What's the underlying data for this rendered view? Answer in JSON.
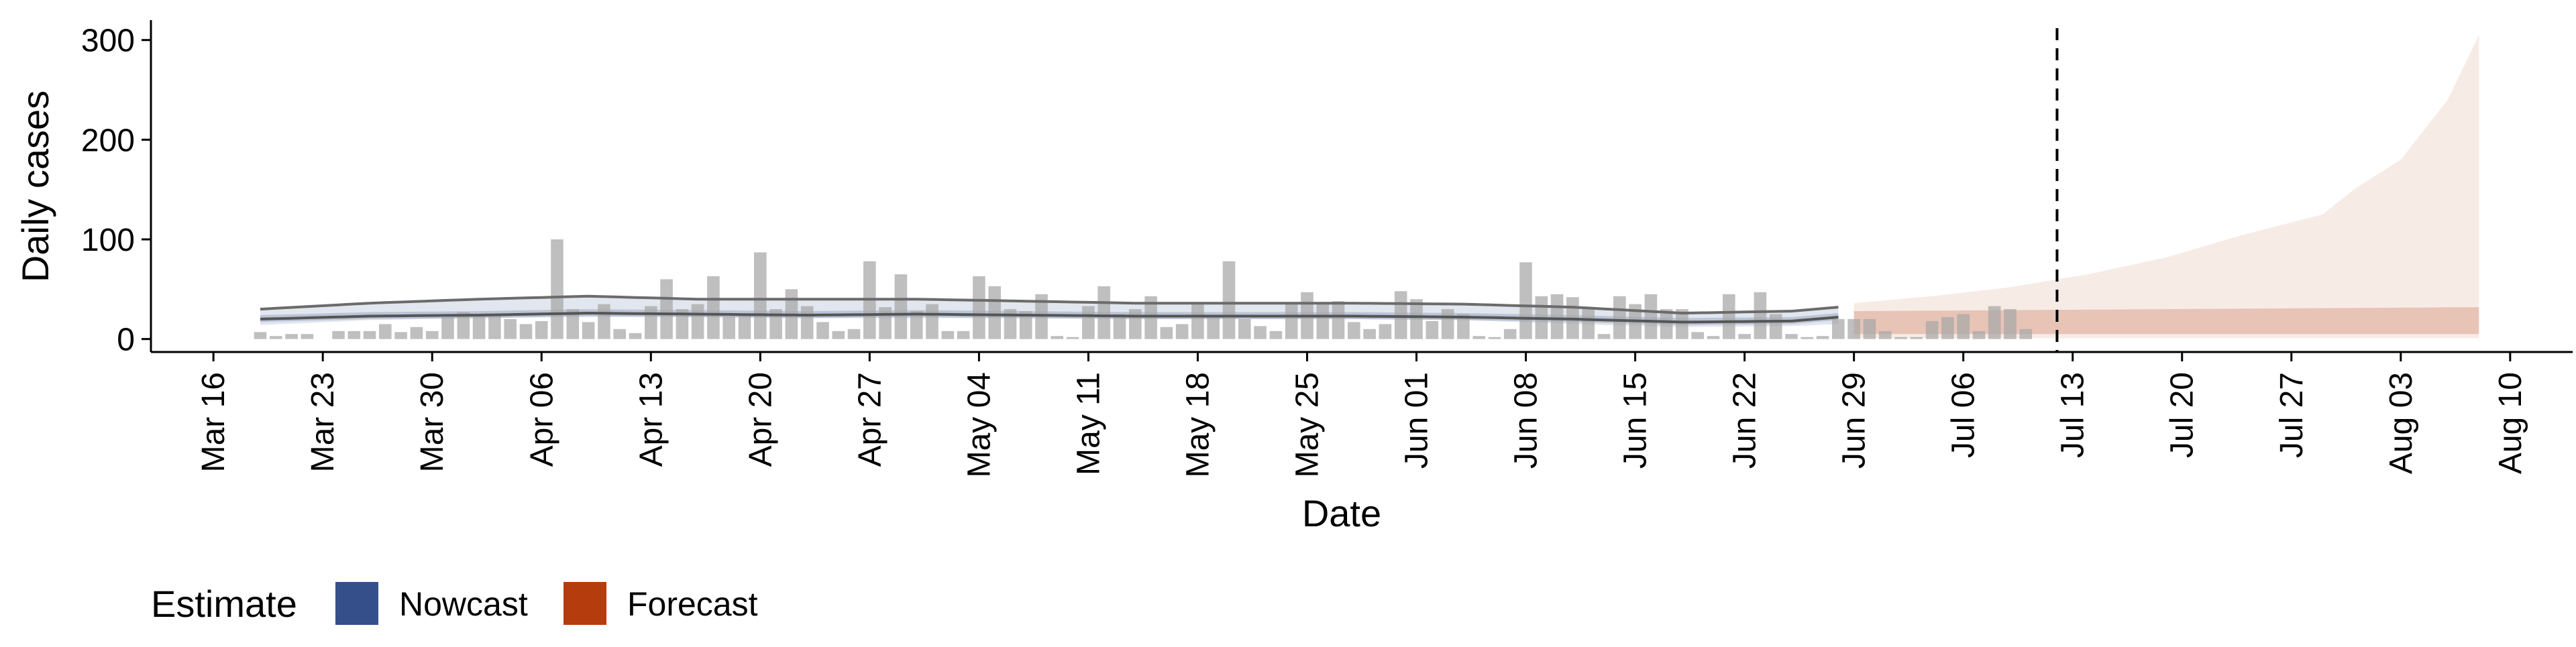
{
  "chart_data": {
    "type": "bar",
    "xlabel": "Date",
    "ylabel": "Daily cases",
    "ylim": [
      0,
      320
    ],
    "y_ticks": [
      "0",
      "100",
      "200",
      "300"
    ],
    "x_ticks": [
      "Mar 16",
      "Mar 23",
      "Mar 30",
      "Apr 06",
      "Apr 13",
      "Apr 20",
      "Apr 27",
      "May 04",
      "May 11",
      "May 18",
      "May 25",
      "Jun 01",
      "Jun 08",
      "Jun 15",
      "Jun 22",
      "Jun 29",
      "Jul 06",
      "Jul 13",
      "Jul 20",
      "Jul 27",
      "Aug 03",
      "Aug 10"
    ],
    "x_tick_dates": [
      "2020-03-16",
      "2020-03-23",
      "2020-03-30",
      "2020-04-06",
      "2020-04-13",
      "2020-04-20",
      "2020-04-27",
      "2020-05-04",
      "2020-05-11",
      "2020-05-18",
      "2020-05-25",
      "2020-06-01",
      "2020-06-08",
      "2020-06-15",
      "2020-06-22",
      "2020-06-29",
      "2020-07-06",
      "2020-07-13",
      "2020-07-20",
      "2020-07-27",
      "2020-08-03",
      "2020-08-10"
    ],
    "xlim": [
      "2020-03-12",
      "2020-08-14"
    ],
    "grid": false,
    "legend": {
      "title": "Estimate",
      "position": "bottom-left",
      "entries": [
        {
          "label": "Nowcast",
          "color": "#354f8a"
        },
        {
          "label": "Forecast",
          "color": "#b53c0c"
        }
      ]
    },
    "reference_line": {
      "x": "2020-07-12",
      "style": "dashed"
    },
    "observed_cases": {
      "start": "2020-03-19",
      "color": "#a6a6a6",
      "values": [
        7,
        3,
        5,
        5,
        0,
        8,
        8,
        8,
        15,
        7,
        12,
        8,
        22,
        27,
        25,
        23,
        20,
        15,
        18,
        100,
        30,
        17,
        35,
        10,
        6,
        33,
        60,
        30,
        35,
        63,
        23,
        25,
        87,
        30,
        50,
        33,
        17,
        8,
        10,
        78,
        32,
        65,
        28,
        35,
        8,
        8,
        63,
        53,
        30,
        28,
        45,
        3,
        2,
        33,
        53,
        25,
        30,
        43,
        12,
        15,
        35,
        23,
        78,
        20,
        13,
        8,
        35,
        47,
        35,
        38,
        17,
        10,
        15,
        48,
        40,
        18,
        30,
        25,
        3,
        2,
        10,
        77,
        43,
        45,
        42,
        30,
        5,
        43,
        35,
        45,
        30,
        30,
        7,
        3,
        45,
        5,
        47,
        25,
        5,
        2,
        3,
        20,
        20,
        20,
        8,
        2,
        2,
        18,
        22,
        25,
        8,
        33,
        30,
        10
      ]
    },
    "nowcast": {
      "start": "2020-03-19",
      "end": "2020-06-28",
      "color": "#354f8a",
      "median": [
        [
          0,
          20
        ],
        [
          7,
          23
        ],
        [
          14,
          24
        ],
        [
          21,
          26
        ],
        [
          28,
          25
        ],
        [
          35,
          24
        ],
        [
          42,
          25
        ],
        [
          49,
          24
        ],
        [
          56,
          23
        ],
        [
          63,
          23
        ],
        [
          70,
          23
        ],
        [
          77,
          22
        ],
        [
          84,
          20
        ],
        [
          91,
          17
        ],
        [
          98,
          18
        ],
        [
          101,
          22
        ]
      ],
      "lower": [
        [
          0,
          14
        ],
        [
          7,
          19
        ],
        [
          14,
          21
        ],
        [
          21,
          22
        ],
        [
          28,
          22
        ],
        [
          35,
          21
        ],
        [
          42,
          21
        ],
        [
          49,
          21
        ],
        [
          56,
          20
        ],
        [
          63,
          20
        ],
        [
          70,
          20
        ],
        [
          77,
          19
        ],
        [
          84,
          15
        ],
        [
          91,
          12
        ],
        [
          98,
          13
        ],
        [
          101,
          15
        ]
      ],
      "upper": [
        [
          0,
          30
        ],
        [
          7,
          36
        ],
        [
          14,
          40
        ],
        [
          21,
          43
        ],
        [
          28,
          40
        ],
        [
          35,
          40
        ],
        [
          42,
          40
        ],
        [
          49,
          38
        ],
        [
          56,
          36
        ],
        [
          63,
          36
        ],
        [
          70,
          36
        ],
        [
          77,
          35
        ],
        [
          84,
          32
        ],
        [
          91,
          26
        ],
        [
          98,
          28
        ],
        [
          101,
          32
        ]
      ]
    },
    "forecast": {
      "start": "2020-06-29",
      "end": "2020-08-08",
      "color": "#b53c0c",
      "median": [
        [
          0,
          18
        ],
        [
          40,
          18
        ]
      ],
      "lower": [
        [
          0,
          1
        ],
        [
          10,
          1
        ],
        [
          20,
          1
        ],
        [
          30,
          1
        ],
        [
          40,
          1
        ]
      ],
      "upper": [
        [
          0,
          36
        ],
        [
          5,
          43
        ],
        [
          10,
          52
        ],
        [
          15,
          65
        ],
        [
          20,
          82
        ],
        [
          25,
          105
        ],
        [
          30,
          125
        ],
        [
          32,
          150
        ],
        [
          35,
          180
        ],
        [
          38,
          240
        ],
        [
          40,
          305
        ]
      ],
      "mid_lower": [
        [
          0,
          5
        ],
        [
          40,
          5
        ]
      ],
      "mid_upper": [
        [
          0,
          28
        ],
        [
          40,
          32
        ]
      ]
    }
  }
}
